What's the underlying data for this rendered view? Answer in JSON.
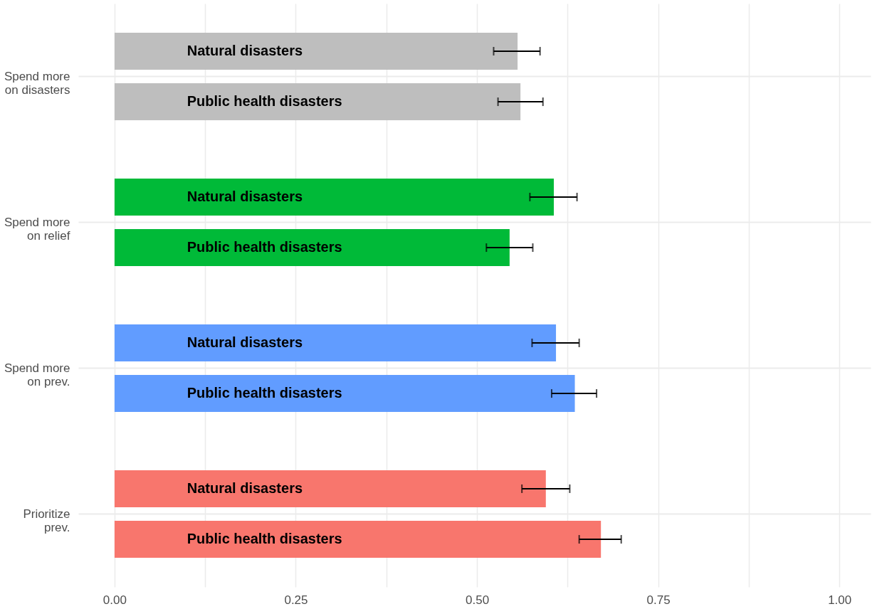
{
  "chart_data": {
    "type": "bar",
    "orientation": "horizontal",
    "categories": [
      "Spend more\non disasters",
      "Spend more\non relief",
      "Spend more\non prev.",
      "Prioritize\nprev."
    ],
    "series": [
      {
        "name": "Natural disasters",
        "colors": [
          "#bebebe",
          "#00ba38",
          "#619cff",
          "#f8766d"
        ],
        "values": [
          0.556,
          0.606,
          0.609,
          0.595
        ],
        "errors": [
          [
            0.523,
            0.587
          ],
          [
            0.573,
            0.638
          ],
          [
            0.576,
            0.641
          ],
          [
            0.562,
            0.628
          ]
        ]
      },
      {
        "name": "Public health disasters",
        "colors": [
          "#bebebe",
          "#00ba38",
          "#619cff",
          "#f8766d"
        ],
        "values": [
          0.56,
          0.545,
          0.635,
          0.671
        ],
        "errors": [
          [
            0.529,
            0.591
          ],
          [
            0.513,
            0.577
          ],
          [
            0.603,
            0.665
          ],
          [
            0.641,
            0.699
          ]
        ]
      }
    ],
    "xlim": [
      -0.05,
      1.043
    ],
    "xticks": [
      {
        "value": 0,
        "label": "0.00"
      },
      {
        "value": 0.125,
        "label": null
      },
      {
        "value": 0.25,
        "label": "0.25"
      },
      {
        "value": 0.375,
        "label": null
      },
      {
        "value": 0.5,
        "label": "0.50"
      },
      {
        "value": 0.625,
        "label": null
      },
      {
        "value": 0.75,
        "label": "0.75"
      },
      {
        "value": 0.875,
        "label": null
      },
      {
        "value": 1,
        "label": "1.00"
      }
    ],
    "grid": true
  }
}
